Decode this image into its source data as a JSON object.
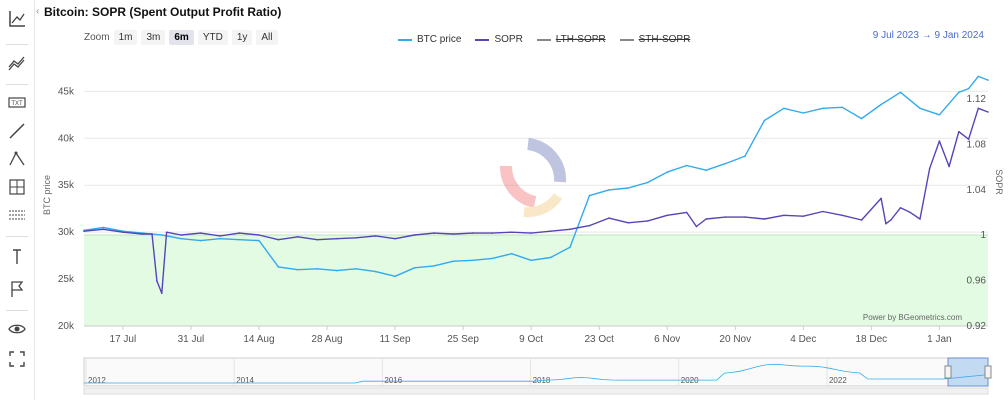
{
  "title": "Bitcoin: SOPR (Spent Output Profit Ratio)",
  "collapse_icon": "chevron-left-icon",
  "toolbar": [
    {
      "name": "axis-line-icon"
    },
    {
      "name": "trend-lines-icon"
    },
    {
      "name": "text-tool-icon"
    },
    {
      "name": "line-tool-icon"
    },
    {
      "name": "path-tool-icon"
    },
    {
      "name": "crosshair-icon"
    },
    {
      "name": "measure-icon"
    },
    {
      "name": "vertical-line-icon"
    },
    {
      "name": "flag-icon"
    },
    {
      "name": "eye-icon"
    },
    {
      "name": "fullscreen-icon"
    }
  ],
  "zoom": {
    "label": "Zoom",
    "buttons": [
      "1m",
      "3m",
      "6m",
      "YTD",
      "1y",
      "All"
    ],
    "active": "6m"
  },
  "legend": [
    {
      "label": "BTC price",
      "color": "#33aaee",
      "struck": false
    },
    {
      "label": "SOPR",
      "color": "#5546b8",
      "struck": false
    },
    {
      "label": "LTH-SOPR",
      "color": "#888888",
      "struck": true
    },
    {
      "label": "STH-SOPR",
      "color": "#888888",
      "struck": true
    }
  ],
  "range": {
    "from": "9 Jul 2023",
    "arrow": "→",
    "to": "9 Jan 2024"
  },
  "credit": "Power by BGeometrics.com",
  "navigator": {
    "years": [
      "2012",
      "2014",
      "2016",
      "2018",
      "2020",
      "2022"
    ]
  },
  "chart_data": {
    "type": "line",
    "xlabels": [
      "17 Jul",
      "31 Jul",
      "14 Aug",
      "28 Aug",
      "11 Sep",
      "25 Sep",
      "9 Oct",
      "23 Oct",
      "6 Nov",
      "20 Nov",
      "4 Dec",
      "18 Dec",
      "1 Jan"
    ],
    "ylabel_left": "BTC price",
    "ylabel_right": "SOPR",
    "y_left_ticks": [
      "20k",
      "25k",
      "30k",
      "35k",
      "40k",
      "45k"
    ],
    "y_right_ticks": [
      "0.92",
      "0.96",
      "1",
      "1.04",
      "1.08",
      "1.12"
    ],
    "y_left_range": [
      20000,
      46000
    ],
    "y_right_range": [
      0.92,
      1.135
    ],
    "x_range_days": [
      0,
      186
    ],
    "start_date": "2023-07-09",
    "profit_zone": {
      "above": 1.0,
      "color": "#e3fae3"
    },
    "series": [
      {
        "name": "BTC price",
        "axis": "left",
        "color": "#33aaee",
        "x": [
          0,
          4,
          8,
          12,
          16,
          20,
          24,
          28,
          32,
          36,
          40,
          44,
          48,
          52,
          56,
          60,
          64,
          68,
          72,
          76,
          80,
          84,
          88,
          92,
          96,
          100,
          104,
          108,
          112,
          116,
          120,
          124,
          128,
          132,
          136,
          140,
          144,
          148,
          152,
          156,
          160,
          164,
          168,
          172,
          176,
          180,
          182,
          184,
          186
        ],
        "values": [
          30200,
          30500,
          30100,
          29900,
          29700,
          29300,
          29100,
          29300,
          29200,
          29100,
          26300,
          26000,
          26100,
          25900,
          26100,
          25800,
          25300,
          26200,
          26400,
          26900,
          27000,
          27200,
          27700,
          27000,
          27300,
          28400,
          33900,
          34500,
          34700,
          35300,
          36400,
          37100,
          36600,
          37300,
          38100,
          41900,
          43200,
          42700,
          43200,
          43300,
          42100,
          43600,
          44900,
          43200,
          42500,
          44900,
          45300,
          46600,
          46200
        ]
      },
      {
        "name": "SOPR",
        "axis": "left",
        "color": "#5546b8",
        "x": [
          0,
          4,
          8,
          12,
          14,
          15,
          16,
          17,
          20,
          24,
          28,
          32,
          36,
          40,
          44,
          48,
          52,
          56,
          60,
          64,
          68,
          72,
          76,
          80,
          84,
          88,
          92,
          96,
          100,
          104,
          108,
          112,
          116,
          120,
          124,
          126,
          128,
          132,
          136,
          140,
          144,
          148,
          152,
          156,
          160,
          164,
          165,
          166,
          168,
          170,
          172,
          174,
          176,
          178,
          180,
          182,
          184,
          186
        ],
        "values": [
          30100,
          30300,
          30000,
          29800,
          29800,
          24800,
          23500,
          30000,
          29700,
          29900,
          29600,
          29900,
          29700,
          29200,
          29500,
          29200,
          29300,
          29400,
          29600,
          29300,
          29700,
          29900,
          29800,
          29900,
          29900,
          30000,
          29900,
          30100,
          30300,
          30700,
          31500,
          31000,
          31200,
          31800,
          32100,
          30600,
          31400,
          31600,
          31600,
          31400,
          31800,
          31700,
          32200,
          31800,
          31300,
          33600,
          30900,
          31300,
          32600,
          32100,
          31400,
          36800,
          39700,
          37000,
          40700,
          39900,
          43200,
          42800
        ]
      }
    ]
  }
}
